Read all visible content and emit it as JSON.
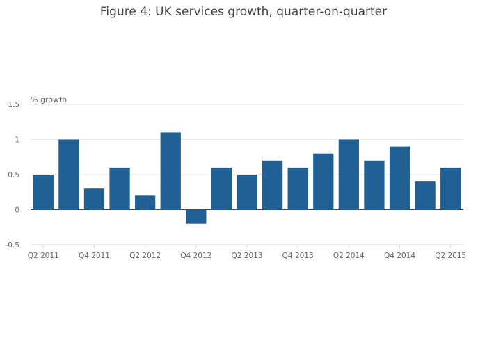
{
  "title": "Figure 4: UK services growth, quarter-on-quarter",
  "chart_data": {
    "type": "bar",
    "title": "Figure 4: UK services growth, quarter-on-quarter",
    "ylabel": "% growth",
    "xlabel": "",
    "categories": [
      "Q2 2011",
      "Q3 2011",
      "Q4 2011",
      "Q1 2012",
      "Q2 2012",
      "Q3 2012",
      "Q4 2012",
      "Q1 2013",
      "Q2 2013",
      "Q3 2013",
      "Q4 2013",
      "Q1 2014",
      "Q2 2014",
      "Q3 2014",
      "Q4 2014",
      "Q1 2015",
      "Q2 2015"
    ],
    "values": [
      0.5,
      1.0,
      0.3,
      0.6,
      0.2,
      1.1,
      -0.2,
      0.6,
      0.5,
      0.7,
      0.6,
      0.8,
      1.0,
      0.7,
      0.9,
      0.4,
      0.6
    ],
    "x_tick_labels": [
      "Q2 2011",
      "Q4 2011",
      "Q2 2012",
      "Q4 2012",
      "Q2 2013",
      "Q4 2013",
      "Q2 2014",
      "Q4 2014",
      "Q2 2015"
    ],
    "y_ticks": [
      -0.5,
      0,
      0.5,
      1,
      1.5
    ],
    "y_tick_labels": [
      "-0.5",
      "0",
      "0.5",
      "1",
      "1.5"
    ],
    "ylim": [
      -0.5,
      1.5
    ],
    "grid": true,
    "legend": "none",
    "bar_color": "#206095",
    "grid_color": "#e6e6e6",
    "axis_color": "#c8d7e6"
  }
}
